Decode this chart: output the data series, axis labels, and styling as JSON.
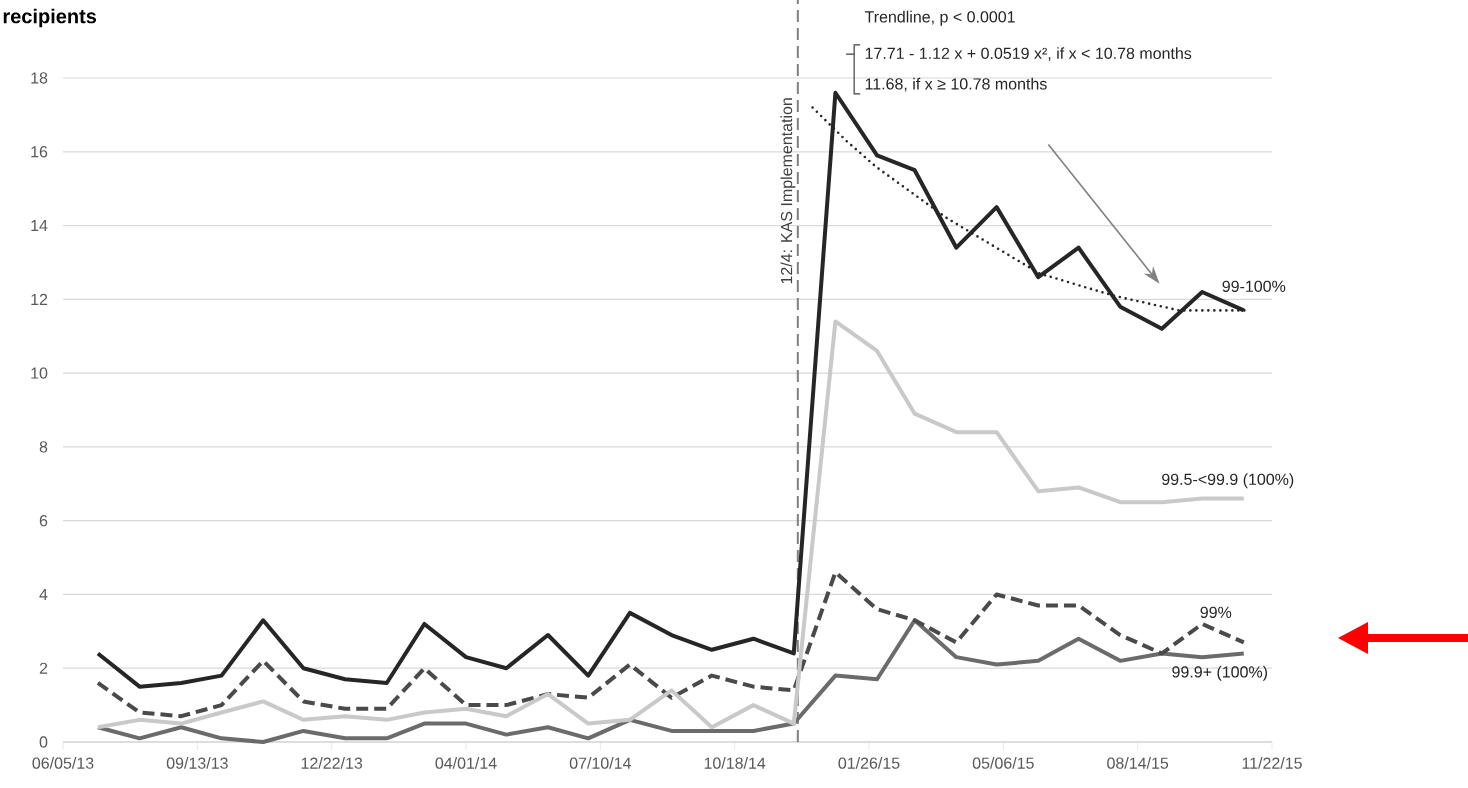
{
  "chart_data": {
    "type": "line",
    "ylabel": "recipients",
    "x": [
      "2013-07",
      "2013-08",
      "2013-09",
      "2013-10",
      "2013-11",
      "2013-12",
      "2014-01",
      "2014-02",
      "2014-03",
      "2014-04",
      "2014-05",
      "2014-06",
      "2014-07",
      "2014-08",
      "2014-09",
      "2014-10",
      "2014-11",
      "2014-12",
      "2015-01",
      "2015-02",
      "2015-03",
      "2015-04",
      "2015-05",
      "2015-06",
      "2015-07",
      "2015-08",
      "2015-09",
      "2015-10",
      "2015-11"
    ],
    "series": [
      {
        "name": "99.9+ (100%)",
        "color": "#6b6b6b",
        "line_style": "solid",
        "values": [
          0.4,
          0.1,
          0.4,
          0.1,
          0.0,
          0.3,
          0.1,
          0.1,
          0.5,
          0.5,
          0.2,
          0.4,
          0.1,
          0.6,
          0.3,
          0.3,
          0.3,
          0.5,
          1.8,
          1.7,
          3.3,
          2.3,
          2.1,
          2.2,
          2.8,
          2.2,
          2.4,
          2.3,
          2.4
        ]
      },
      {
        "name": "99%",
        "color": "#4a4a4a",
        "line_style": "dashed",
        "values": [
          1.6,
          0.8,
          0.7,
          1.0,
          2.2,
          1.1,
          0.9,
          0.9,
          2.0,
          1.0,
          1.0,
          1.3,
          1.2,
          2.1,
          1.2,
          1.8,
          1.5,
          1.4,
          4.6,
          3.6,
          3.3,
          2.7,
          4.0,
          3.7,
          3.7,
          2.9,
          2.4,
          3.2,
          2.7
        ]
      },
      {
        "name": "99.5-<99.9 (100%)",
        "color": "#c9c9c9",
        "line_style": "solid",
        "values": [
          0.4,
          0.6,
          0.5,
          0.8,
          1.1,
          0.6,
          0.7,
          0.6,
          0.8,
          0.9,
          0.7,
          1.3,
          0.5,
          0.6,
          1.4,
          0.4,
          1.0,
          0.5,
          11.4,
          10.6,
          8.9,
          8.4,
          8.4,
          6.8,
          6.9,
          6.5,
          6.5,
          6.6,
          6.6
        ]
      },
      {
        "name": "99-100%",
        "color": "#262626",
        "line_style": "solid",
        "values": [
          2.4,
          1.5,
          1.6,
          1.8,
          3.3,
          2.0,
          1.7,
          1.6,
          3.2,
          2.3,
          2.0,
          2.9,
          1.8,
          3.5,
          2.9,
          2.5,
          2.8,
          2.4,
          17.6,
          15.9,
          15.5,
          13.4,
          14.5,
          12.6,
          13.4,
          11.8,
          11.2,
          12.2,
          11.7
        ]
      },
      {
        "type": "line",
        "color": "#262626",
        "line_style": "dotted",
        "x": [
          "2014-12-15",
          "2015-01-09",
          "2015-01-31",
          "2015-03-25",
          "2015-06-02",
          "2015-07-27",
          "2015-09-14",
          "2015-11-03"
        ],
        "values": [
          17.2,
          16.3,
          15.6,
          14.2,
          12.7,
          12.1,
          11.7,
          11.7
        ]
      }
    ],
    "xlim": [
      "2013-06-05",
      "2015-11-22"
    ],
    "xticks": [
      {
        "value": "2013-06-05",
        "label": "06/05/13"
      },
      {
        "value": "2013-09-13",
        "label": "09/13/13"
      },
      {
        "value": "2013-12-22",
        "label": "12/22/13"
      },
      {
        "value": "2014-04-01",
        "label": "04/01/14"
      },
      {
        "value": "2014-07-10",
        "label": "07/10/14"
      },
      {
        "value": "2014-10-18",
        "label": "10/18/14"
      },
      {
        "value": "2015-01-26",
        "label": "01/26/15"
      },
      {
        "value": "2015-05-06",
        "label": "05/06/15"
      },
      {
        "value": "2015-08-14",
        "label": "08/14/15"
      },
      {
        "value": "2015-11-22",
        "label": "11/22/15"
      }
    ],
    "ylim": [
      0,
      18
    ],
    "yticks": [
      0,
      2,
      4,
      6,
      8,
      10,
      12,
      14,
      16,
      18
    ],
    "grid": "y",
    "ref_lines": [
      {
        "axis": "x",
        "value": "2014-12-04",
        "label": "12/4: KAS Implementation",
        "color": "#7f7f7f",
        "line_style": "dashed"
      }
    ],
    "annotations": [
      "Trendline, p < 0.0001",
      "17.71 - 1.12 x + 0.0519 x², if x < 10.78 months",
      "11.68, if x ≥ 10.78 months"
    ]
  }
}
